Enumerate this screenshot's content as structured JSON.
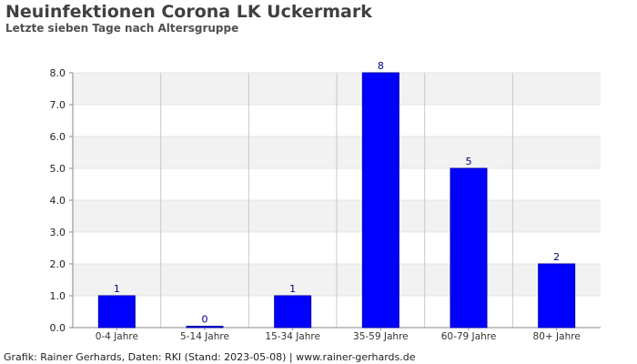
{
  "header": {
    "title": "Neuinfektionen Corona LK Uckermark",
    "subtitle": "Letzte sieben Tage nach Altersgruppe"
  },
  "footer": {
    "text": "Grafik: Rainer Gerhards, Daten: RKI (Stand: 2023-05-08) | www.rainer-gerhards.de"
  },
  "colors": {
    "bar": "#0000ff",
    "bar_stroke": "#0000aa",
    "label": "#000080",
    "band": "#f2f2f2",
    "grid": "#c8c8c8",
    "axis": "#888888"
  },
  "chart_data": {
    "type": "bar",
    "title": "Neuinfektionen Corona LK Uckermark",
    "subtitle": "Letzte sieben Tage nach Altersgruppe",
    "xlabel": "",
    "ylabel": "",
    "categories": [
      "0-4 Jahre",
      "5-14 Jahre",
      "15-34 Jahre",
      "35-59 Jahre",
      "60-79 Jahre",
      "80+ Jahre"
    ],
    "values": [
      1,
      0,
      1,
      8,
      5,
      2
    ],
    "ylim": [
      0,
      8
    ],
    "yticks": [
      "0.0",
      "1.0",
      "2.0",
      "3.0",
      "4.0",
      "5.0",
      "6.0",
      "7.0",
      "8.0"
    ],
    "grid": true,
    "legend": "none"
  }
}
